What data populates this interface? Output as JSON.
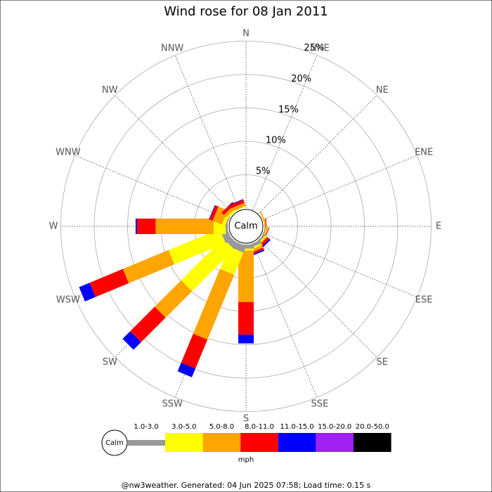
{
  "chart_data": {
    "type": "windrose",
    "title": "Wind rose for 08 Jan 2011",
    "calm_label": "Calm",
    "unit_label": "mph",
    "footer": "@nw3weather. Generated: 04 Jun 2025 07:58; Load time: 0.15 s",
    "directions": [
      "N",
      "NNE",
      "NE",
      "ENE",
      "E",
      "ESE",
      "SE",
      "SSE",
      "S",
      "SSW",
      "SW",
      "WSW",
      "W",
      "WNW",
      "NW",
      "NNW"
    ],
    "rlim": [
      0,
      25
    ],
    "rticks": [
      {
        "value": 5,
        "label": "5%"
      },
      {
        "value": 10,
        "label": "10%"
      },
      {
        "value": 15,
        "label": "15%"
      },
      {
        "value": 20,
        "label": "20%"
      },
      {
        "value": 25,
        "label": "25%"
      }
    ],
    "series": [
      {
        "name": "1.0-3.0",
        "color": "#999999",
        "values": [
          0,
          0,
          0,
          0,
          0,
          0.2,
          0.3,
          0.5,
          0.6,
          1.05,
          0.95,
          1.05,
          0.3,
          0.2,
          0,
          0
        ]
      },
      {
        "name": "3.0-5.0",
        "color": "#ffff00",
        "values": [
          0,
          0,
          0,
          0,
          0,
          0.1,
          0.2,
          0.3,
          0.3,
          3.6,
          8.9,
          8.3,
          1.8,
          0.5,
          0.3,
          0.1
        ]
      },
      {
        "name": "5.0-8.0",
        "color": "#ffa500",
        "values": [
          0,
          0,
          0,
          0.2,
          0.2,
          0.2,
          0.2,
          0.4,
          7.7,
          10.5,
          5.6,
          7.4,
          8.7,
          1.5,
          0.5,
          0.5
        ]
      },
      {
        "name": "8.0-11.0",
        "color": "#ff0000",
        "values": [
          0,
          0,
          0,
          0,
          0.1,
          0.1,
          0.4,
          0.3,
          4.9,
          4.7,
          5.2,
          5.4,
          2.8,
          0.5,
          0.5,
          0.5
        ]
      },
      {
        "name": "11.0-15.0",
        "color": "#0000ff",
        "values": [
          0,
          0,
          0,
          0,
          0,
          0,
          0.2,
          0.2,
          1.3,
          1.4,
          1.6,
          1.7,
          0.2,
          0.1,
          0,
          0.1
        ]
      },
      {
        "name": "15.0-20.0",
        "color": "#a020f0",
        "values": [
          0,
          0,
          0,
          0,
          0,
          0,
          0,
          0,
          0,
          0,
          0,
          0,
          0,
          0,
          0,
          0
        ]
      },
      {
        "name": "20.0-50.0",
        "color": "#000000",
        "values": [
          0,
          0,
          0,
          0,
          0,
          0,
          0,
          0,
          0,
          0,
          0,
          0,
          0,
          0,
          0,
          0
        ]
      }
    ]
  }
}
